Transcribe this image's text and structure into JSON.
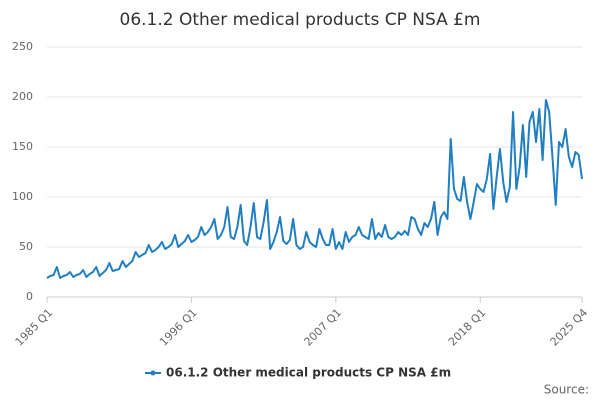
{
  "chart_data": {
    "type": "line",
    "title": "06.1.2 Other medical products CP NSA £m",
    "categories": [
      "1985 Q1",
      null,
      null,
      null,
      null,
      null,
      null,
      null,
      null,
      null,
      null,
      null,
      null,
      null,
      null,
      null,
      null,
      null,
      null,
      null,
      null,
      null,
      null,
      null,
      null,
      null,
      null,
      null,
      null,
      null,
      null,
      null,
      null,
      null,
      null,
      null,
      null,
      null,
      null,
      null,
      null,
      null,
      null,
      null,
      "1996 Q1",
      null,
      null,
      null,
      null,
      null,
      null,
      null,
      null,
      null,
      null,
      null,
      null,
      null,
      null,
      null,
      null,
      null,
      null,
      null,
      null,
      null,
      null,
      null,
      null,
      null,
      null,
      null,
      null,
      null,
      null,
      null,
      null,
      null,
      null,
      null,
      null,
      null,
      null,
      null,
      null,
      null,
      null,
      null,
      "2007 Q1",
      null,
      null,
      null,
      null,
      null,
      null,
      null,
      null,
      null,
      null,
      null,
      null,
      null,
      null,
      null,
      null,
      null,
      null,
      null,
      null,
      null,
      null,
      null,
      null,
      null,
      null,
      null,
      null,
      null,
      null,
      null,
      null,
      null,
      null,
      null,
      null,
      null,
      null,
      null,
      null,
      null,
      null,
      null,
      "2018 Q1",
      null,
      null,
      null,
      null,
      null,
      null,
      null,
      null,
      null,
      null,
      null,
      null,
      null,
      null,
      null,
      null,
      null,
      null,
      null,
      null,
      null,
      null,
      null,
      null,
      null,
      null,
      null,
      null,
      null,
      null,
      "2025 Q4"
    ],
    "series": [
      {
        "name": "06.1.2 Other medical products CP NSA £m",
        "color": "#1f7fc0",
        "values": [
          19,
          21,
          22,
          30,
          19,
          21,
          22,
          25,
          20,
          22,
          23,
          27,
          20,
          23,
          25,
          30,
          21,
          24,
          27,
          34,
          26,
          27,
          28,
          36,
          30,
          33,
          36,
          45,
          40,
          42,
          44,
          52,
          45,
          47,
          50,
          55,
          48,
          50,
          53,
          62,
          50,
          53,
          56,
          62,
          55,
          57,
          60,
          70,
          62,
          65,
          70,
          78,
          58,
          62,
          70,
          90,
          60,
          58,
          70,
          92,
          56,
          52,
          70,
          94,
          60,
          58,
          75,
          97,
          48,
          55,
          65,
          80,
          56,
          53,
          57,
          78,
          52,
          48,
          50,
          65,
          55,
          52,
          50,
          68,
          58,
          52,
          52,
          68,
          48,
          55,
          48,
          65,
          55,
          60,
          62,
          70,
          62,
          60,
          58,
          78,
          58,
          64,
          60,
          72,
          60,
          58,
          60,
          65,
          62,
          66,
          62,
          80,
          78,
          68,
          62,
          74,
          70,
          78,
          95,
          62,
          80,
          85,
          78,
          158,
          108,
          98,
          96,
          120,
          95,
          78,
          95,
          113,
          108,
          105,
          118,
          143,
          88,
          120,
          148,
          115,
          95,
          110,
          185,
          108,
          130,
          172,
          120,
          175,
          185,
          155,
          188,
          137,
          197,
          185,
          140,
          92,
          155,
          150,
          168,
          140,
          130,
          145,
          142,
          118
        ]
      }
    ],
    "ylim": [
      0,
      250
    ],
    "yticks": [
      0,
      50,
      100,
      150,
      200,
      250
    ],
    "grid": true,
    "source": "Source:"
  }
}
